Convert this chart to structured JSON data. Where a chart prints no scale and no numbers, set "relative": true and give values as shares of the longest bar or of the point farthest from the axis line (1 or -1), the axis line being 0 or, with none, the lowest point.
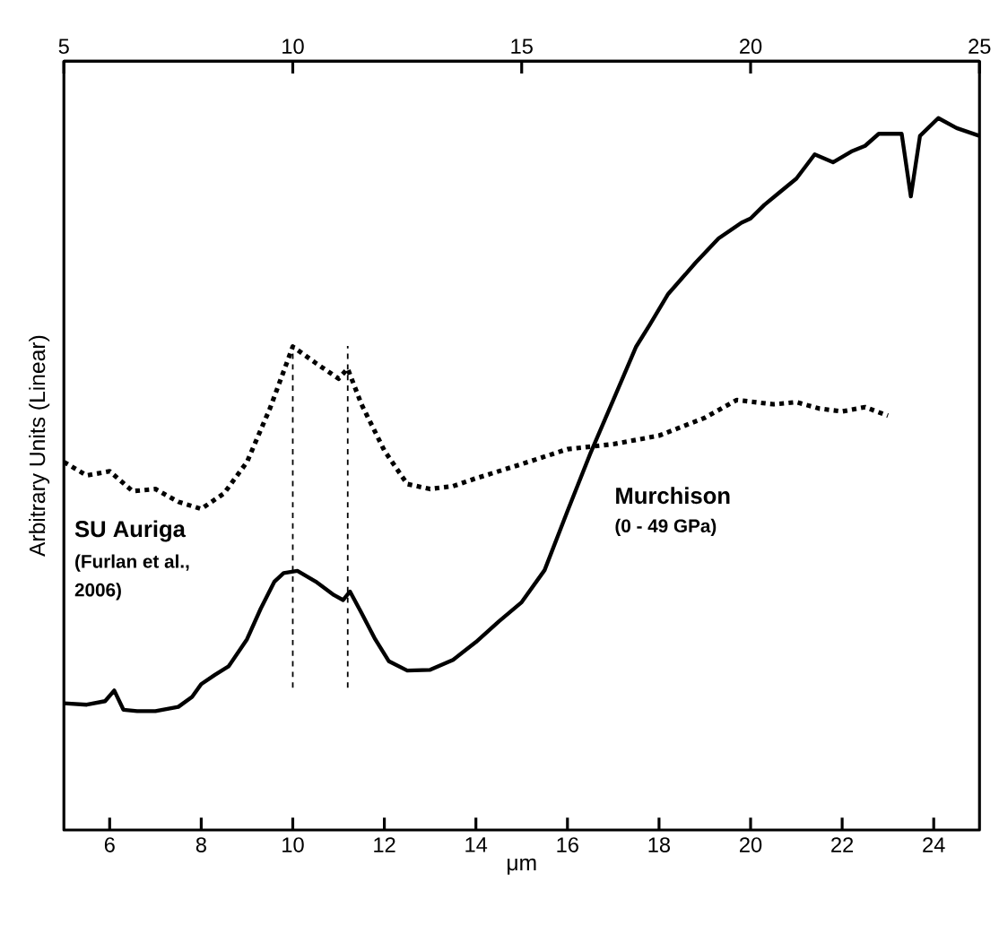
{
  "chart_data": {
    "type": "line",
    "relative": true,
    "xlabel": "μm",
    "ylabel": "Arbitrary Units (Linear)",
    "xlim": [
      5,
      25
    ],
    "xticks": [
      6,
      8,
      10,
      12,
      14,
      16,
      18,
      20,
      22,
      24
    ],
    "x2lim": [
      5,
      25
    ],
    "x2ticks": [
      5,
      10,
      15,
      20,
      25
    ],
    "series": [
      {
        "color": "#000000",
        "line_style": "solid",
        "x": [
          5,
          5.5,
          5.9,
          6.1,
          6.3,
          6.6,
          7.0,
          7.5,
          7.8,
          8.0,
          8.3,
          8.6,
          9.0,
          9.3,
          9.6,
          9.8,
          10.1,
          10.5,
          10.9,
          11.1,
          11.25,
          11.5,
          11.8,
          12.1,
          12.5,
          13.0,
          13.5,
          14.0,
          14.5,
          15.0,
          15.5,
          16.0,
          16.5,
          17.0,
          17.5,
          17.8,
          18.2,
          18.8,
          19.3,
          19.8,
          20.0,
          20.3,
          20.6,
          21.0,
          21.4,
          21.8,
          22.2,
          22.5,
          22.8,
          23.3,
          23.5,
          23.7,
          24.1,
          24.5,
          25.0
        ],
        "values": [
          0.178,
          0.176,
          0.181,
          0.196,
          0.169,
          0.167,
          0.167,
          0.173,
          0.187,
          0.205,
          0.218,
          0.23,
          0.268,
          0.311,
          0.349,
          0.361,
          0.364,
          0.349,
          0.33,
          0.323,
          0.335,
          0.305,
          0.268,
          0.237,
          0.224,
          0.225,
          0.239,
          0.264,
          0.293,
          0.32,
          0.365,
          0.448,
          0.529,
          0.604,
          0.679,
          0.71,
          0.753,
          0.797,
          0.831,
          0.853,
          0.859,
          0.878,
          0.894,
          0.915,
          0.949,
          0.938,
          0.953,
          0.961,
          0.978,
          0.978,
          0.89,
          0.975,
          1.0,
          0.986,
          0.975
        ]
      },
      {
        "color": "#000000",
        "line_style": "dotted",
        "x": [
          5,
          5.5,
          6.0,
          6.5,
          7.0,
          7.5,
          8.0,
          8.5,
          9.0,
          9.5,
          10.0,
          10.5,
          11.0,
          11.2,
          11.5,
          12.0,
          12.5,
          13.0,
          13.5,
          14.0,
          15.0,
          16.0,
          17.0,
          18.0,
          19.0,
          19.7,
          20.5,
          21.0,
          21.5,
          22.0,
          22.5,
          23.0
        ],
        "values": [
          0.517,
          0.498,
          0.504,
          0.476,
          0.479,
          0.461,
          0.451,
          0.473,
          0.517,
          0.592,
          0.679,
          0.656,
          0.634,
          0.648,
          0.598,
          0.533,
          0.486,
          0.479,
          0.483,
          0.494,
          0.514,
          0.535,
          0.542,
          0.554,
          0.579,
          0.604,
          0.598,
          0.601,
          0.592,
          0.588,
          0.594,
          0.582
        ]
      }
    ],
    "ref_lines": [
      {
        "axis": "x",
        "value": 10.0,
        "line_style": "dashed",
        "color": "#000000"
      },
      {
        "axis": "x",
        "value": 11.2,
        "line_style": "dashed",
        "color": "#000000"
      }
    ],
    "annotations": [
      "**SU Auriga**",
      "**(Furlan et al.,**",
      "**2006)**",
      "**Murchison**",
      "**(0 - 49 GPa)**"
    ]
  }
}
